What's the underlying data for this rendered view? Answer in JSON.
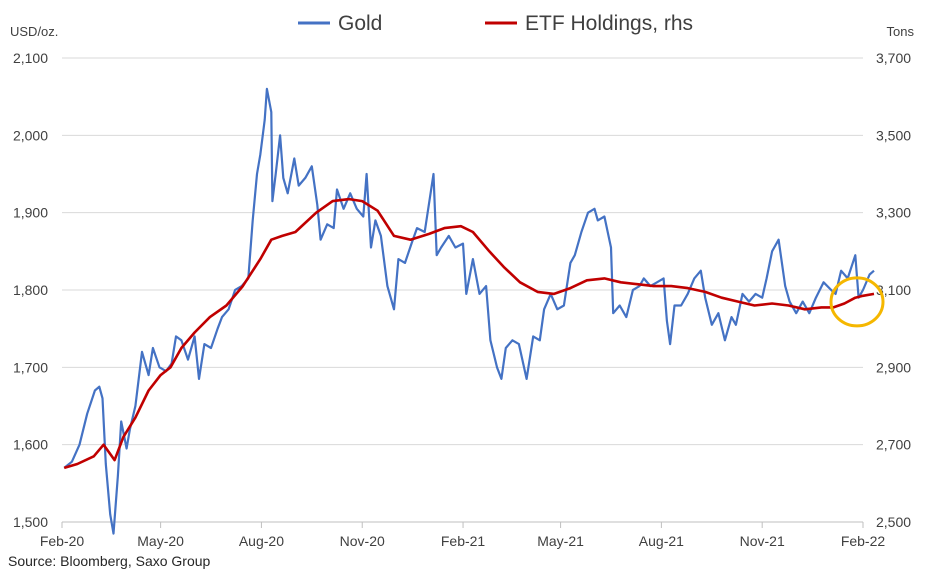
{
  "chart_data": {
    "type": "line",
    "xlabel": "",
    "x_ticks": [
      "Feb-20",
      "May-20",
      "Aug-20",
      "Nov-20",
      "Feb-21",
      "May-21",
      "Aug-21",
      "Nov-21",
      "Feb-22"
    ],
    "y_left": {
      "unit": "USD/oz.",
      "ticks": [
        "1,500",
        "1,600",
        "1,700",
        "1,800",
        "1,900",
        "2,000",
        "2,100"
      ],
      "range": [
        1500,
        2100
      ]
    },
    "y_right": {
      "unit": "Tons",
      "ticks": [
        "2,500",
        "2,700",
        "2,900",
        "3,100",
        "3,300",
        "3,500",
        "3,700"
      ],
      "range": [
        2500,
        3700
      ]
    },
    "legend_position": "top-center",
    "grid": "horizontal",
    "series": [
      {
        "name": "Gold",
        "axis": "left",
        "color": "#4472C4",
        "points": [
          [
            "2020-02-03",
            1570
          ],
          [
            "2020-02-10",
            1578
          ],
          [
            "2020-02-17",
            1600
          ],
          [
            "2020-02-24",
            1640
          ],
          [
            "2020-03-02",
            1670
          ],
          [
            "2020-03-06",
            1675
          ],
          [
            "2020-03-09",
            1660
          ],
          [
            "2020-03-12",
            1575
          ],
          [
            "2020-03-16",
            1510
          ],
          [
            "2020-03-19",
            1485
          ],
          [
            "2020-03-23",
            1560
          ],
          [
            "2020-03-26",
            1630
          ],
          [
            "2020-03-31",
            1595
          ],
          [
            "2020-04-03",
            1620
          ],
          [
            "2020-04-08",
            1650
          ],
          [
            "2020-04-14",
            1720
          ],
          [
            "2020-04-20",
            1690
          ],
          [
            "2020-04-24",
            1725
          ],
          [
            "2020-04-30",
            1700
          ],
          [
            "2020-05-06",
            1695
          ],
          [
            "2020-05-11",
            1705
          ],
          [
            "2020-05-15",
            1740
          ],
          [
            "2020-05-20",
            1735
          ],
          [
            "2020-05-26",
            1710
          ],
          [
            "2020-06-01",
            1740
          ],
          [
            "2020-06-05",
            1685
          ],
          [
            "2020-06-10",
            1730
          ],
          [
            "2020-06-16",
            1725
          ],
          [
            "2020-06-22",
            1750
          ],
          [
            "2020-06-26",
            1765
          ],
          [
            "2020-07-02",
            1775
          ],
          [
            "2020-07-08",
            1800
          ],
          [
            "2020-07-14",
            1805
          ],
          [
            "2020-07-20",
            1815
          ],
          [
            "2020-07-24",
            1890
          ],
          [
            "2020-07-28",
            1950
          ],
          [
            "2020-07-31",
            1975
          ],
          [
            "2020-08-04",
            2020
          ],
          [
            "2020-08-06",
            2060
          ],
          [
            "2020-08-10",
            2030
          ],
          [
            "2020-08-11",
            1915
          ],
          [
            "2020-08-14",
            1950
          ],
          [
            "2020-08-18",
            2000
          ],
          [
            "2020-08-21",
            1945
          ],
          [
            "2020-08-25",
            1925
          ],
          [
            "2020-08-31",
            1970
          ],
          [
            "2020-09-04",
            1935
          ],
          [
            "2020-09-10",
            1945
          ],
          [
            "2020-09-16",
            1960
          ],
          [
            "2020-09-21",
            1910
          ],
          [
            "2020-09-24",
            1865
          ],
          [
            "2020-09-30",
            1885
          ],
          [
            "2020-10-06",
            1880
          ],
          [
            "2020-10-09",
            1930
          ],
          [
            "2020-10-15",
            1905
          ],
          [
            "2020-10-21",
            1925
          ],
          [
            "2020-10-27",
            1905
          ],
          [
            "2020-11-02",
            1895
          ],
          [
            "2020-11-05",
            1950
          ],
          [
            "2020-11-09",
            1855
          ],
          [
            "2020-11-13",
            1890
          ],
          [
            "2020-11-18",
            1870
          ],
          [
            "2020-11-24",
            1805
          ],
          [
            "2020-11-30",
            1775
          ],
          [
            "2020-12-04",
            1840
          ],
          [
            "2020-12-10",
            1835
          ],
          [
            "2020-12-16",
            1860
          ],
          [
            "2020-12-21",
            1880
          ],
          [
            "2020-12-28",
            1875
          ],
          [
            "2021-01-05",
            1950
          ],
          [
            "2021-01-08",
            1845
          ],
          [
            "2021-01-12",
            1855
          ],
          [
            "2021-01-19",
            1870
          ],
          [
            "2021-01-25",
            1855
          ],
          [
            "2021-02-01",
            1860
          ],
          [
            "2021-02-04",
            1795
          ],
          [
            "2021-02-10",
            1840
          ],
          [
            "2021-02-16",
            1795
          ],
          [
            "2021-02-22",
            1805
          ],
          [
            "2021-02-26",
            1735
          ],
          [
            "2021-03-04",
            1700
          ],
          [
            "2021-03-08",
            1685
          ],
          [
            "2021-03-12",
            1725
          ],
          [
            "2021-03-18",
            1735
          ],
          [
            "2021-03-24",
            1730
          ],
          [
            "2021-03-31",
            1685
          ],
          [
            "2021-04-06",
            1740
          ],
          [
            "2021-04-12",
            1735
          ],
          [
            "2021-04-16",
            1775
          ],
          [
            "2021-04-22",
            1795
          ],
          [
            "2021-04-28",
            1775
          ],
          [
            "2021-05-04",
            1780
          ],
          [
            "2021-05-10",
            1835
          ],
          [
            "2021-05-14",
            1845
          ],
          [
            "2021-05-20",
            1875
          ],
          [
            "2021-05-26",
            1900
          ],
          [
            "2021-06-01",
            1905
          ],
          [
            "2021-06-04",
            1890
          ],
          [
            "2021-06-10",
            1895
          ],
          [
            "2021-06-16",
            1855
          ],
          [
            "2021-06-18",
            1770
          ],
          [
            "2021-06-24",
            1780
          ],
          [
            "2021-06-30",
            1765
          ],
          [
            "2021-07-06",
            1800
          ],
          [
            "2021-07-12",
            1805
          ],
          [
            "2021-07-16",
            1815
          ],
          [
            "2021-07-22",
            1805
          ],
          [
            "2021-07-28",
            1810
          ],
          [
            "2021-08-03",
            1815
          ],
          [
            "2021-08-06",
            1760
          ],
          [
            "2021-08-09",
            1730
          ],
          [
            "2021-08-13",
            1780
          ],
          [
            "2021-08-19",
            1780
          ],
          [
            "2021-08-25",
            1795
          ],
          [
            "2021-08-31",
            1815
          ],
          [
            "2021-09-06",
            1825
          ],
          [
            "2021-09-10",
            1790
          ],
          [
            "2021-09-16",
            1755
          ],
          [
            "2021-09-22",
            1770
          ],
          [
            "2021-09-28",
            1735
          ],
          [
            "2021-10-04",
            1765
          ],
          [
            "2021-10-08",
            1755
          ],
          [
            "2021-10-14",
            1795
          ],
          [
            "2021-10-20",
            1785
          ],
          [
            "2021-10-26",
            1795
          ],
          [
            "2021-11-01",
            1790
          ],
          [
            "2021-11-05",
            1815
          ],
          [
            "2021-11-10",
            1850
          ],
          [
            "2021-11-16",
            1865
          ],
          [
            "2021-11-22",
            1805
          ],
          [
            "2021-11-26",
            1785
          ],
          [
            "2021-12-02",
            1770
          ],
          [
            "2021-12-08",
            1785
          ],
          [
            "2021-12-14",
            1770
          ],
          [
            "2021-12-20",
            1790
          ],
          [
            "2021-12-27",
            1810
          ],
          [
            "2022-01-03",
            1800
          ],
          [
            "2022-01-07",
            1795
          ],
          [
            "2022-01-12",
            1825
          ],
          [
            "2022-01-18",
            1815
          ],
          [
            "2022-01-25",
            1845
          ],
          [
            "2022-01-28",
            1790
          ],
          [
            "2022-02-01",
            1800
          ],
          [
            "2022-02-07",
            1820
          ],
          [
            "2022-02-11",
            1825
          ]
        ]
      },
      {
        "name": "ETF Holdings, rhs",
        "axis": "right",
        "color": "#C00000",
        "points": [
          [
            "2020-02-03",
            2640
          ],
          [
            "2020-02-15",
            2650
          ],
          [
            "2020-03-01",
            2670
          ],
          [
            "2020-03-10",
            2700
          ],
          [
            "2020-03-20",
            2660
          ],
          [
            "2020-03-28",
            2720
          ],
          [
            "2020-04-08",
            2770
          ],
          [
            "2020-04-20",
            2840
          ],
          [
            "2020-05-01",
            2880
          ],
          [
            "2020-05-10",
            2900
          ],
          [
            "2020-05-20",
            2950
          ],
          [
            "2020-06-01",
            2990
          ],
          [
            "2020-06-15",
            3030
          ],
          [
            "2020-06-30",
            3060
          ],
          [
            "2020-07-15",
            3110
          ],
          [
            "2020-07-31",
            3180
          ],
          [
            "2020-08-10",
            3230
          ],
          [
            "2020-08-20",
            3240
          ],
          [
            "2020-09-01",
            3250
          ],
          [
            "2020-09-20",
            3300
          ],
          [
            "2020-10-05",
            3330
          ],
          [
            "2020-10-20",
            3335
          ],
          [
            "2020-11-01",
            3330
          ],
          [
            "2020-11-15",
            3305
          ],
          [
            "2020-11-30",
            3240
          ],
          [
            "2020-12-15",
            3230
          ],
          [
            "2021-01-01",
            3245
          ],
          [
            "2021-01-15",
            3260
          ],
          [
            "2021-01-30",
            3265
          ],
          [
            "2021-02-10",
            3250
          ],
          [
            "2021-02-25",
            3200
          ],
          [
            "2021-03-10",
            3160
          ],
          [
            "2021-03-25",
            3120
          ],
          [
            "2021-04-10",
            3095
          ],
          [
            "2021-04-25",
            3090
          ],
          [
            "2021-05-10",
            3105
          ],
          [
            "2021-05-25",
            3125
          ],
          [
            "2021-06-10",
            3130
          ],
          [
            "2021-06-25",
            3120
          ],
          [
            "2021-07-10",
            3115
          ],
          [
            "2021-07-25",
            3110
          ],
          [
            "2021-08-10",
            3110
          ],
          [
            "2021-08-25",
            3105
          ],
          [
            "2021-09-10",
            3095
          ],
          [
            "2021-09-25",
            3080
          ],
          [
            "2021-10-10",
            3070
          ],
          [
            "2021-10-25",
            3060
          ],
          [
            "2021-11-10",
            3065
          ],
          [
            "2021-11-25",
            3060
          ],
          [
            "2021-12-10",
            3050
          ],
          [
            "2021-12-25",
            3055
          ],
          [
            "2022-01-05",
            3055
          ],
          [
            "2022-01-15",
            3065
          ],
          [
            "2022-01-25",
            3080
          ],
          [
            "2022-02-01",
            3085
          ],
          [
            "2022-02-11",
            3090
          ]
        ]
      }
    ],
    "annotation": {
      "type": "circle",
      "color": "#F5B700",
      "near": [
        "2022-02-01",
        3090
      ],
      "axis": "right"
    },
    "source": "Source: Bloomberg, Saxo Group"
  }
}
